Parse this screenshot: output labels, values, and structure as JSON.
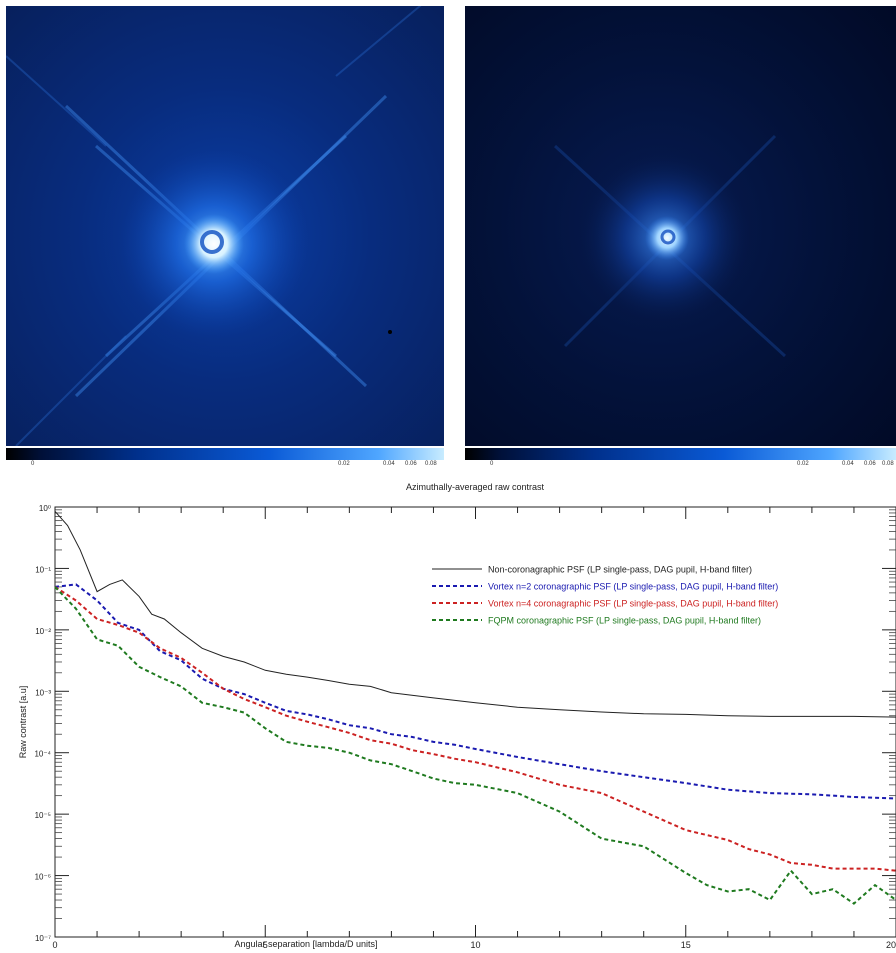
{
  "images": {
    "left": {
      "colorbar_ticks": [
        "0",
        "0.02",
        "0.04",
        "0.06",
        "0.08"
      ]
    },
    "right": {
      "colorbar_ticks": [
        "0",
        "0.02",
        "0.04",
        "0.06",
        "0.08"
      ]
    }
  },
  "colors": {
    "background": "#ffffff",
    "psf_low": "#000a2e",
    "psf_high": "#d8f2ff"
  },
  "chart_data": {
    "type": "line",
    "title": "Azimuthally-averaged raw contrast",
    "xlabel": "Angular separation [lambda/D units]",
    "ylabel": "Raw contrast [a.u]",
    "xlim": [
      0,
      20
    ],
    "ylim": [
      1e-07,
      1
    ],
    "yscale": "log",
    "grid": false,
    "legend_position": "top-right",
    "x_ticks": [
      "0",
      "5",
      "10",
      "15",
      "20"
    ],
    "y_ticks": [
      "10⁰",
      "10⁻¹",
      "10⁻²",
      "10⁻³",
      "10⁻⁴",
      "10⁻⁵",
      "10⁻⁶",
      "10⁻⁷"
    ],
    "series": [
      {
        "name": "Non-coronagraphic  PSF (LP single-pass, DAG pupil, H-band filter)",
        "color": "#222222",
        "dash": "solid",
        "x": [
          0,
          0.3,
          0.6,
          1.0,
          1.3,
          1.6,
          2.0,
          2.3,
          2.6,
          3.0,
          3.5,
          4,
          4.5,
          5,
          5.5,
          6,
          6.5,
          7,
          7.5,
          8,
          9,
          10,
          11,
          12,
          13,
          14,
          15,
          16,
          17,
          18,
          19,
          20
        ],
        "y": [
          0.85,
          0.5,
          0.2,
          0.042,
          0.055,
          0.065,
          0.035,
          0.018,
          0.015,
          0.009,
          0.005,
          0.0037,
          0.003,
          0.0022,
          0.0019,
          0.0017,
          0.0015,
          0.0013,
          0.0012,
          0.00095,
          0.00078,
          0.00065,
          0.00055,
          0.0005,
          0.00046,
          0.00043,
          0.00042,
          0.0004,
          0.00039,
          0.00039,
          0.00039,
          0.00038
        ]
      },
      {
        "name": "Vortex n=2 coronagraphic PSF (LP single-pass, DAG pupil, H-band filter)",
        "color": "#1a1ab0",
        "dash": "4,3",
        "x": [
          0,
          0.5,
          1.0,
          1.5,
          2.0,
          2.5,
          3.0,
          3.5,
          4,
          4.5,
          5,
          5.5,
          6,
          6.5,
          7,
          7.5,
          8,
          8.5,
          9,
          9.5,
          10,
          11,
          12,
          13,
          14,
          15,
          16,
          17,
          18,
          19,
          20
        ],
        "y": [
          0.05,
          0.055,
          0.03,
          0.013,
          0.01,
          0.0045,
          0.0032,
          0.0016,
          0.0011,
          0.0009,
          0.00065,
          0.00048,
          0.00042,
          0.00035,
          0.00028,
          0.00025,
          0.0002,
          0.00018,
          0.00015,
          0.000135,
          0.000115,
          8.5e-05,
          6.5e-05,
          5e-05,
          4e-05,
          3.2e-05,
          2.5e-05,
          2.2e-05,
          2.1e-05,
          1.9e-05,
          1.8e-05
        ]
      },
      {
        "name": "Vortex n=4 coronagraphic PSF (LP single-pass, DAG pupil, H-band filter)",
        "color": "#cc2222",
        "dash": "4,3",
        "x": [
          0,
          0.5,
          1.0,
          1.5,
          2.0,
          2.5,
          3.0,
          3.5,
          4,
          4.5,
          5,
          5.5,
          6,
          6.5,
          7,
          7.5,
          8,
          8.5,
          9,
          9.5,
          10,
          11,
          12,
          13,
          14,
          15,
          16,
          16.5,
          17,
          17.5,
          18,
          18.5,
          19,
          19.5,
          20
        ],
        "y": [
          0.05,
          0.03,
          0.015,
          0.012,
          0.009,
          0.005,
          0.0035,
          0.002,
          0.0011,
          0.00075,
          0.00055,
          0.0004,
          0.00032,
          0.00026,
          0.00021,
          0.00016,
          0.00014,
          0.00011,
          9.5e-05,
          8e-05,
          7e-05,
          4.8e-05,
          3e-05,
          2.2e-05,
          1.1e-05,
          5.5e-06,
          3.8e-06,
          2.7e-06,
          2.2e-06,
          1.6e-06,
          1.5e-06,
          1.3e-06,
          1.3e-06,
          1.3e-06,
          1.2e-06
        ]
      },
      {
        "name": "FQPM coronagraphic PSF (LP single-pass, DAG pupil, H-band filter)",
        "color": "#1f7a1f",
        "dash": "4,3",
        "x": [
          0,
          0.5,
          1.0,
          1.5,
          2.0,
          2.5,
          3.0,
          3.5,
          4,
          4.5,
          5,
          5.5,
          6,
          6.5,
          7,
          7.5,
          8,
          8.5,
          9,
          9.5,
          10,
          11,
          12,
          13,
          14,
          15,
          15.5,
          16,
          16.5,
          17,
          17.5,
          18,
          18.5,
          19,
          19.5,
          20
        ],
        "y": [
          0.05,
          0.022,
          0.007,
          0.0055,
          0.0025,
          0.0017,
          0.0012,
          0.00065,
          0.00055,
          0.00045,
          0.00025,
          0.00015,
          0.00013,
          0.00012,
          0.0001,
          7.5e-05,
          6.5e-05,
          5e-05,
          3.8e-05,
          3.2e-05,
          3e-05,
          2.2e-05,
          1.1e-05,
          4e-06,
          3e-06,
          1.1e-06,
          7e-07,
          5.5e-07,
          6e-07,
          4e-07,
          1.2e-06,
          5e-07,
          6e-07,
          3.5e-07,
          7e-07,
          4e-07
        ]
      }
    ]
  }
}
